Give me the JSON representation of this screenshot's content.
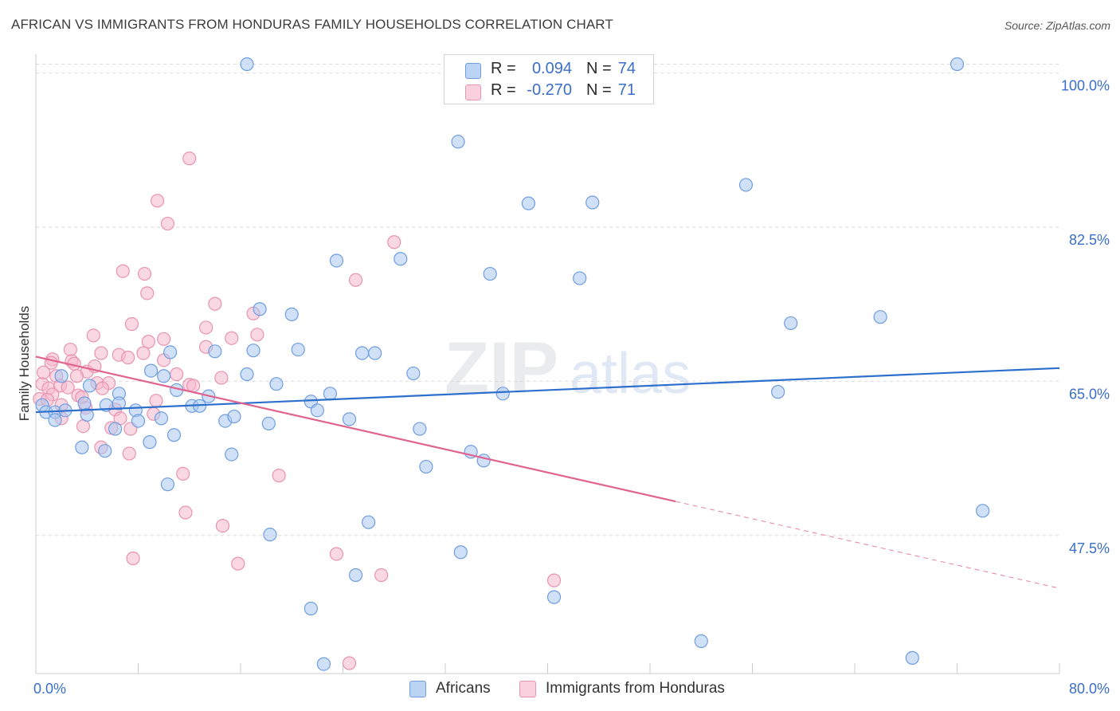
{
  "title": "AFRICAN VS IMMIGRANTS FROM HONDURAS FAMILY HOUSEHOLDS CORRELATION CHART",
  "source": "Source: ZipAtlas.com",
  "watermark": {
    "zip": "ZIP",
    "atlas": "atlas"
  },
  "legend_top": {
    "r_label": "R =",
    "n_label": "N =",
    "rows": [
      {
        "r": "0.094",
        "n": "74",
        "color": "#a9c8f0"
      },
      {
        "r": "-0.270",
        "n": "71",
        "color": "#f5b8cc"
      }
    ]
  },
  "legend_bottom": [
    {
      "label": "Africans",
      "color": "#a9c8f0"
    },
    {
      "label": "Immigrants from Honduras",
      "color": "#f5b8cc"
    }
  ],
  "colors": {
    "blue_fill": "#a9c8f0",
    "blue_stroke": "#6f9de0",
    "blue_line": "#2c6fcc",
    "pink_fill": "#f5b8cc",
    "pink_stroke": "#e893b0",
    "pink_line": "#e0638f",
    "tick_text": "#3a6ec9",
    "grid": "#d9d9d9"
  },
  "chart_data": {
    "type": "scatter",
    "title": "AFRICAN VS IMMIGRANTS FROM HONDURAS FAMILY HOUSEHOLDS CORRELATION CHART",
    "xlabel": "",
    "ylabel": "Family Households",
    "xlim": [
      0,
      80
    ],
    "ylim": [
      33,
      101.5
    ],
    "x_tick_labels": [
      "0.0%",
      "80.0%"
    ],
    "y_ticks": [
      47.5,
      65.0,
      82.5,
      100.0
    ],
    "y_tick_labels": [
      "47.5%",
      "65.0%",
      "82.5%",
      "100.0%"
    ],
    "legend_position": "top-center",
    "series": [
      {
        "name": "Africans",
        "R": 0.094,
        "N": 74,
        "trend": {
          "x0": 0,
          "y0": 61.5,
          "x1": 80,
          "y1": 66.5,
          "dashed_from": null
        },
        "points": [
          [
            16.5,
            101.0
          ],
          [
            72.0,
            101.0
          ],
          [
            33.0,
            92.2
          ],
          [
            55.5,
            87.3
          ],
          [
            38.5,
            85.2
          ],
          [
            43.5,
            85.3
          ],
          [
            23.5,
            78.7
          ],
          [
            28.5,
            78.9
          ],
          [
            35.5,
            77.2
          ],
          [
            42.5,
            76.7
          ],
          [
            17.5,
            73.2
          ],
          [
            20.0,
            72.6
          ],
          [
            59.0,
            71.6
          ],
          [
            66.0,
            72.3
          ],
          [
            20.5,
            68.6
          ],
          [
            14.0,
            68.4
          ],
          [
            17.0,
            68.5
          ],
          [
            25.5,
            68.2
          ],
          [
            26.5,
            68.2
          ],
          [
            10.5,
            68.3
          ],
          [
            9.0,
            66.2
          ],
          [
            10.0,
            65.6
          ],
          [
            16.5,
            65.8
          ],
          [
            29.5,
            65.9
          ],
          [
            2.0,
            65.6
          ],
          [
            4.2,
            64.5
          ],
          [
            6.5,
            63.6
          ],
          [
            13.5,
            63.3
          ],
          [
            18.8,
            64.7
          ],
          [
            23.0,
            63.6
          ],
          [
            21.5,
            62.7
          ],
          [
            58.0,
            63.8
          ],
          [
            36.5,
            63.6
          ],
          [
            0.5,
            62.3
          ],
          [
            0.8,
            61.5
          ],
          [
            1.5,
            61.5
          ],
          [
            2.3,
            61.7
          ],
          [
            3.8,
            62.5
          ],
          [
            5.5,
            62.3
          ],
          [
            6.5,
            62.5
          ],
          [
            12.2,
            62.2
          ],
          [
            12.8,
            62.2
          ],
          [
            7.8,
            61.7
          ],
          [
            8.0,
            60.5
          ],
          [
            9.8,
            60.8
          ],
          [
            14.8,
            60.5
          ],
          [
            15.5,
            61.0
          ],
          [
            18.2,
            60.2
          ],
          [
            22.0,
            61.7
          ],
          [
            24.5,
            60.7
          ],
          [
            30.0,
            59.6
          ],
          [
            6.2,
            59.6
          ],
          [
            10.8,
            58.9
          ],
          [
            8.9,
            58.1
          ],
          [
            3.6,
            57.5
          ],
          [
            5.4,
            57.1
          ],
          [
            15.3,
            56.7
          ],
          [
            34.0,
            57.0
          ],
          [
            35.0,
            56.0
          ],
          [
            30.5,
            55.3
          ],
          [
            10.3,
            53.3
          ],
          [
            1.5,
            60.6
          ],
          [
            74.0,
            50.3
          ],
          [
            26.0,
            49.0
          ],
          [
            18.3,
            47.6
          ],
          [
            33.2,
            45.6
          ],
          [
            25.0,
            43.0
          ],
          [
            40.5,
            40.5
          ],
          [
            21.5,
            39.2
          ],
          [
            52.0,
            35.5
          ],
          [
            68.5,
            33.6
          ],
          [
            22.5,
            32.9
          ],
          [
            4.0,
            61.2
          ],
          [
            11.0,
            64.0
          ]
        ]
      },
      {
        "name": "Immigrants from Honduras",
        "R": -0.27,
        "N": 71,
        "trend": {
          "x0": 0,
          "y0": 67.8,
          "x1": 80,
          "y1": 41.5,
          "dashed_from": 50
        },
        "points": [
          [
            12.0,
            90.3
          ],
          [
            9.5,
            85.5
          ],
          [
            10.3,
            82.9
          ],
          [
            28.0,
            80.8
          ],
          [
            6.8,
            77.5
          ],
          [
            8.5,
            77.2
          ],
          [
            25.0,
            76.5
          ],
          [
            8.7,
            75.0
          ],
          [
            14.0,
            73.8
          ],
          [
            17.0,
            72.7
          ],
          [
            7.5,
            71.5
          ],
          [
            13.3,
            71.1
          ],
          [
            17.3,
            70.3
          ],
          [
            4.5,
            70.2
          ],
          [
            15.3,
            69.9
          ],
          [
            8.8,
            69.5
          ],
          [
            10.0,
            69.8
          ],
          [
            13.3,
            68.9
          ],
          [
            2.7,
            68.6
          ],
          [
            1.3,
            67.5
          ],
          [
            5.1,
            68.2
          ],
          [
            6.5,
            68.0
          ],
          [
            7.2,
            67.7
          ],
          [
            8.4,
            68.2
          ],
          [
            1.2,
            67.1
          ],
          [
            2.8,
            67.3
          ],
          [
            3.0,
            67.0
          ],
          [
            10.0,
            67.4
          ],
          [
            4.0,
            66.1
          ],
          [
            1.6,
            65.6
          ],
          [
            11.0,
            65.8
          ],
          [
            14.5,
            65.4
          ],
          [
            0.5,
            64.7
          ],
          [
            1.0,
            64.2
          ],
          [
            1.9,
            64.5
          ],
          [
            4.8,
            64.8
          ],
          [
            5.7,
            64.8
          ],
          [
            12.0,
            64.6
          ],
          [
            12.3,
            64.5
          ],
          [
            1.3,
            63.5
          ],
          [
            3.3,
            63.4
          ],
          [
            3.6,
            63.2
          ],
          [
            2.0,
            62.3
          ],
          [
            9.4,
            62.8
          ],
          [
            3.9,
            62.0
          ],
          [
            9.2,
            61.3
          ],
          [
            6.2,
            61.8
          ],
          [
            2.0,
            60.8
          ],
          [
            6.6,
            60.8
          ],
          [
            3.7,
            59.9
          ],
          [
            5.9,
            59.7
          ],
          [
            7.4,
            59.6
          ],
          [
            5.1,
            57.5
          ],
          [
            7.3,
            56.8
          ],
          [
            11.5,
            54.5
          ],
          [
            19.0,
            54.3
          ],
          [
            11.7,
            50.1
          ],
          [
            14.6,
            48.6
          ],
          [
            7.6,
            44.9
          ],
          [
            15.8,
            44.3
          ],
          [
            23.5,
            45.4
          ],
          [
            27.0,
            43.0
          ],
          [
            40.5,
            42.4
          ],
          [
            24.5,
            33.0
          ],
          [
            0.3,
            63.0
          ],
          [
            0.6,
            66.0
          ],
          [
            0.9,
            62.9
          ],
          [
            2.5,
            64.3
          ],
          [
            4.6,
            66.7
          ],
          [
            5.2,
            64.2
          ],
          [
            3.2,
            65.6
          ]
        ]
      }
    ]
  }
}
